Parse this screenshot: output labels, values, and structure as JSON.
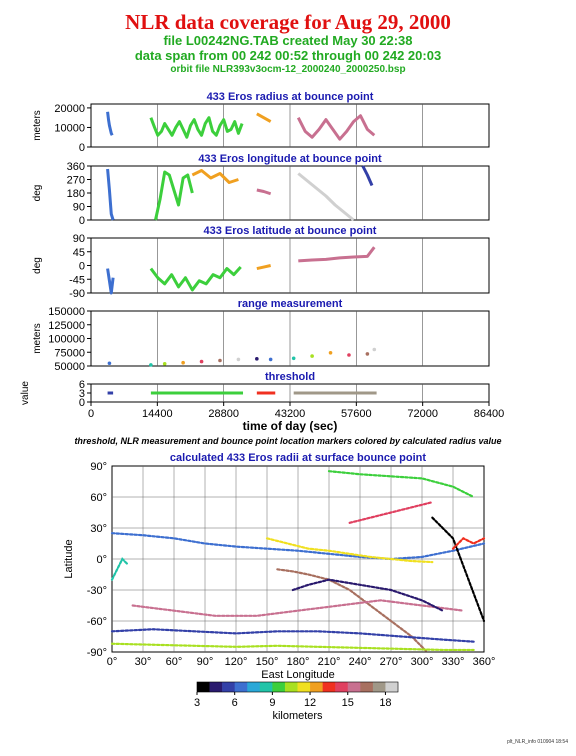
{
  "header": {
    "title": "NLR data coverage for Aug 29, 2000",
    "file_line": "file L00242NG.TAB created May 30 22:38",
    "span_line": "data span from 00 242 00:52 through 00 242 20:03",
    "orbit_line": "orbit file NLR393v3ocm-12_2000240_2000250.bsp"
  },
  "caption": "threshold, NLR measurement and bounce point location markers colored by calculated radius value",
  "footer": "plt_NLR_info 010904 18:54",
  "colors": {
    "title": "#e01010",
    "subtitle": "#22aa22",
    "panel_title": "#1a1ab0",
    "colormap": [
      "#000000",
      "#2a1a6e",
      "#3340a8",
      "#3d6fd0",
      "#2aa8d8",
      "#21c4a8",
      "#3ccf3c",
      "#a8e020",
      "#f0e020",
      "#f0a020",
      "#f03020",
      "#e04060",
      "#c87090",
      "#a87060",
      "#a09888",
      "#d0d0d0"
    ]
  },
  "chart_data": [
    {
      "type": "line",
      "title": "433 Eros radius at bounce point",
      "ylabel": "meters",
      "xlim": [
        0,
        86400
      ],
      "ylim": [
        0,
        22000
      ],
      "yticks": [
        0,
        10000,
        20000
      ],
      "series": [
        {
          "x": [
            3600,
            3800,
            4000,
            4200,
            4400,
            4600
          ],
          "y": [
            18000,
            14000,
            11000,
            9000,
            7000,
            6000
          ]
        },
        {
          "x": [
            13000,
            13800,
            14500,
            15300,
            16000,
            16800,
            17600,
            18400,
            19200,
            20000,
            20800,
            21600,
            22400,
            23200,
            24000,
            24800,
            25600,
            26400,
            27200,
            28000,
            28800,
            29600,
            30400,
            31200,
            32000,
            32800
          ],
          "y": [
            15000,
            10000,
            6000,
            8000,
            12000,
            9000,
            6000,
            10000,
            13000,
            9000,
            5000,
            11000,
            14000,
            9000,
            6000,
            12000,
            15000,
            8000,
            6000,
            11000,
            14000,
            8000,
            9000,
            13000,
            7000,
            12000
          ]
        },
        {
          "x": [
            36000,
            37500,
            39000
          ],
          "y": [
            17000,
            15000,
            13000
          ]
        },
        {
          "x": [
            45000,
            46500,
            48000,
            49500,
            51000,
            52500,
            54000,
            55500,
            57000,
            58500,
            60000,
            61500
          ],
          "y": [
            15000,
            8000,
            5000,
            9000,
            14000,
            9000,
            4000,
            8000,
            13000,
            16000,
            9000,
            6000
          ]
        }
      ]
    },
    {
      "type": "line",
      "title": "433 Eros longitude at bounce point",
      "ylabel": "deg",
      "xlim": [
        0,
        86400
      ],
      "ylim": [
        0,
        360
      ],
      "yticks": [
        0,
        90,
        180,
        270,
        360
      ],
      "series": [
        {
          "x": [
            3600,
            4000,
            4400,
            4800
          ],
          "y": [
            340,
            200,
            40,
            0
          ]
        },
        {
          "x": [
            14000,
            15000,
            16000,
            17000,
            18000,
            19000,
            20000,
            21000,
            22000
          ],
          "y": [
            0,
            140,
            320,
            300,
            200,
            100,
            280,
            300,
            180
          ]
        },
        {
          "x": [
            22000,
            24000,
            26000,
            28000,
            30000,
            32000
          ],
          "y": [
            300,
            330,
            280,
            310,
            250,
            270
          ]
        },
        {
          "x": [
            36000,
            37500,
            39000
          ],
          "y": [
            200,
            190,
            175
          ]
        },
        {
          "x": [
            45000,
            47000,
            49000,
            51000,
            53000,
            55000,
            57000
          ],
          "y": [
            310,
            260,
            210,
            160,
            100,
            50,
            0
          ]
        },
        {
          "x": [
            59000,
            60000,
            61000
          ],
          "y": [
            360,
            300,
            230
          ]
        }
      ]
    },
    {
      "type": "line",
      "title": "433 Eros latitude at bounce point",
      "ylabel": "deg",
      "xlim": [
        0,
        86400
      ],
      "ylim": [
        -90,
        90
      ],
      "yticks": [
        -90,
        -45,
        0,
        45,
        90
      ],
      "series": [
        {
          "x": [
            3600,
            4000,
            4400,
            4800
          ],
          "y": [
            -10,
            -50,
            -90,
            -40
          ]
        },
        {
          "x": [
            13000,
            14500,
            16000,
            17500,
            19000,
            20500,
            22000,
            23500,
            25000,
            26500,
            28000,
            29500,
            31000,
            32500
          ],
          "y": [
            -10,
            -40,
            -60,
            -30,
            -70,
            -40,
            -80,
            -50,
            -60,
            -30,
            -40,
            -10,
            -30,
            -5
          ]
        },
        {
          "x": [
            36000,
            37500,
            39000
          ],
          "y": [
            -10,
            -5,
            0
          ]
        },
        {
          "x": [
            45000,
            48000,
            51000,
            54000,
            57000,
            60000,
            61500
          ],
          "y": [
            15,
            18,
            20,
            25,
            28,
            30,
            60
          ]
        }
      ]
    },
    {
      "type": "scatter",
      "title": "range measurement",
      "ylabel": "meters",
      "xlim": [
        0,
        86400
      ],
      "ylim": [
        50000,
        150000
      ],
      "yticks": [
        50000,
        75000,
        100000,
        125000,
        150000
      ],
      "series": [
        {
          "x": [
            4000,
            13000,
            16000,
            20000,
            24000,
            28000,
            32000,
            36000,
            39000,
            44000,
            48000,
            52000,
            56000,
            60000,
            61500
          ],
          "y": [
            55000,
            52000,
            54000,
            56000,
            58000,
            60000,
            62000,
            63000,
            62000,
            64000,
            68000,
            74000,
            70000,
            72000,
            80000
          ]
        }
      ]
    },
    {
      "type": "scatter",
      "title": "threshold",
      "ylabel": "value",
      "xlabel": "time of day (sec)",
      "xlim": [
        0,
        86400
      ],
      "ylim": [
        0,
        6
      ],
      "yticks": [
        0,
        3,
        6
      ],
      "xticks": [
        0,
        14400,
        28800,
        43200,
        57600,
        72000,
        86400
      ],
      "series": [
        {
          "x": [
            3600,
            4800
          ],
          "y": [
            3,
            3
          ]
        },
        {
          "x": [
            13000,
            33000
          ],
          "y": [
            3,
            3
          ]
        },
        {
          "x": [
            36000,
            40000
          ],
          "y": [
            3,
            3
          ]
        },
        {
          "x": [
            44000,
            62000
          ],
          "y": [
            3,
            3
          ]
        }
      ]
    },
    {
      "type": "scatter",
      "title": "calculated 433 Eros radii at surface bounce point",
      "xlabel": "East Longitude",
      "ylabel": "Latitude",
      "xlim": [
        0,
        360
      ],
      "ylim": [
        -90,
        90
      ],
      "xticks": [
        0,
        30,
        60,
        90,
        120,
        150,
        180,
        210,
        240,
        270,
        300,
        330,
        360
      ],
      "yticks": [
        -90,
        -60,
        -30,
        0,
        30,
        60,
        90
      ],
      "colorbar": {
        "label": "kilometers",
        "ticks": [
          3,
          6,
          9,
          12,
          15,
          18
        ],
        "range": [
          3,
          19
        ]
      },
      "series": [
        {
          "x": [
            0,
            30,
            60,
            90,
            120,
            150,
            180,
            210,
            240,
            270,
            300,
            330,
            360
          ],
          "y": [
            25,
            23,
            20,
            15,
            12,
            10,
            8,
            5,
            2,
            0,
            2,
            8,
            15
          ]
        },
        {
          "x": [
            150,
            170,
            190,
            210,
            230,
            250,
            270,
            290,
            310
          ],
          "y": [
            20,
            15,
            10,
            8,
            5,
            2,
            0,
            -2,
            -3
          ]
        },
        {
          "x": [
            160,
            175,
            190,
            210,
            230,
            250,
            270,
            290,
            305
          ],
          "y": [
            -10,
            -12,
            -15,
            -20,
            -30,
            -45,
            -60,
            -75,
            -90
          ]
        },
        {
          "x": [
            0,
            40,
            80,
            120,
            160,
            200,
            240,
            280,
            320,
            350
          ],
          "y": [
            -70,
            -68,
            -70,
            -72,
            -70,
            -70,
            -72,
            -75,
            -78,
            -80
          ]
        },
        {
          "x": [
            0,
            40,
            80,
            120,
            160,
            200,
            240,
            280,
            320,
            350
          ],
          "y": [
            -82,
            -83,
            -84,
            -85,
            -84,
            -85,
            -86,
            -87,
            -88,
            -88
          ]
        },
        {
          "x": [
            20,
            60,
            100,
            140,
            180,
            220,
            260,
            300,
            340
          ],
          "y": [
            -45,
            -50,
            -55,
            -55,
            -50,
            -45,
            -40,
            -45,
            -50
          ]
        },
        {
          "x": [
            175,
            190,
            210,
            240,
            270,
            300,
            320
          ],
          "y": [
            -30,
            -25,
            -20,
            -25,
            -30,
            -40,
            -50
          ]
        },
        {
          "x": [
            210,
            240,
            270,
            300,
            330,
            350
          ],
          "y": [
            85,
            82,
            80,
            78,
            70,
            60
          ]
        },
        {
          "x": [
            230,
            250,
            270,
            290,
            310
          ],
          "y": [
            35,
            40,
            45,
            50,
            55
          ]
        },
        {
          "x": [
            310,
            320,
            330,
            345,
            360
          ],
          "y": [
            40,
            30,
            20,
            -20,
            -60
          ]
        },
        {
          "x": [
            0,
            5,
            10,
            15
          ],
          "y": [
            -20,
            -10,
            0,
            -5
          ]
        },
        {
          "x": [
            330,
            340,
            350,
            360
          ],
          "y": [
            10,
            20,
            15,
            20
          ]
        }
      ]
    }
  ]
}
